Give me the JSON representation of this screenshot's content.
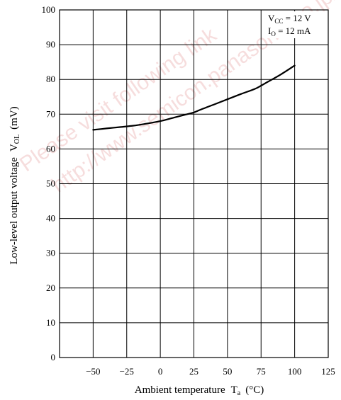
{
  "watermark": {
    "line1": "Please visit following link",
    "line2": "http://www.semicon.panasonic.co.jp/en/",
    "color": "#e8a0a0"
  },
  "chart_data": {
    "type": "line",
    "xlabel": "Ambient temperature",
    "xlabel_symbol": "T",
    "xlabel_sub": "a",
    "xlabel_unit": "(°C)",
    "ylabel": "Low-level output voltage",
    "ylabel_symbol": "V",
    "ylabel_sub": "OL",
    "ylabel_unit": "(mV)",
    "xlim": [
      -75,
      125
    ],
    "ylim": [
      0,
      100
    ],
    "xticks": [
      -50,
      -25,
      0,
      25,
      50,
      75,
      100,
      125
    ],
    "xtick_labels": [
      "−50",
      "−25",
      "0",
      "25",
      "50",
      "75",
      "100",
      "125"
    ],
    "yticks": [
      0,
      10,
      20,
      30,
      40,
      50,
      60,
      70,
      80,
      90,
      100
    ],
    "ytick_labels": [
      "0",
      "10",
      "20",
      "30",
      "40",
      "50",
      "60",
      "70",
      "80",
      "90",
      "100"
    ],
    "grid": true,
    "conditions": [
      {
        "symbol": "V",
        "sub": "CC",
        "text": " = 12 V"
      },
      {
        "symbol": "I",
        "sub": "O",
        "text": " = 12 mA"
      }
    ],
    "series": [
      {
        "color": "#000000",
        "x": [
          -50,
          -40,
          -30,
          -20,
          -10,
          0,
          10,
          20,
          25,
          30,
          40,
          50,
          60,
          70,
          75,
          80,
          90,
          100
        ],
        "y": [
          65.5,
          65.9,
          66.3,
          66.7,
          67.3,
          68.0,
          69.0,
          70.0,
          70.5,
          71.3,
          72.8,
          74.3,
          75.8,
          77.2,
          78.2,
          79.3,
          81.5,
          84.0
        ]
      }
    ]
  }
}
